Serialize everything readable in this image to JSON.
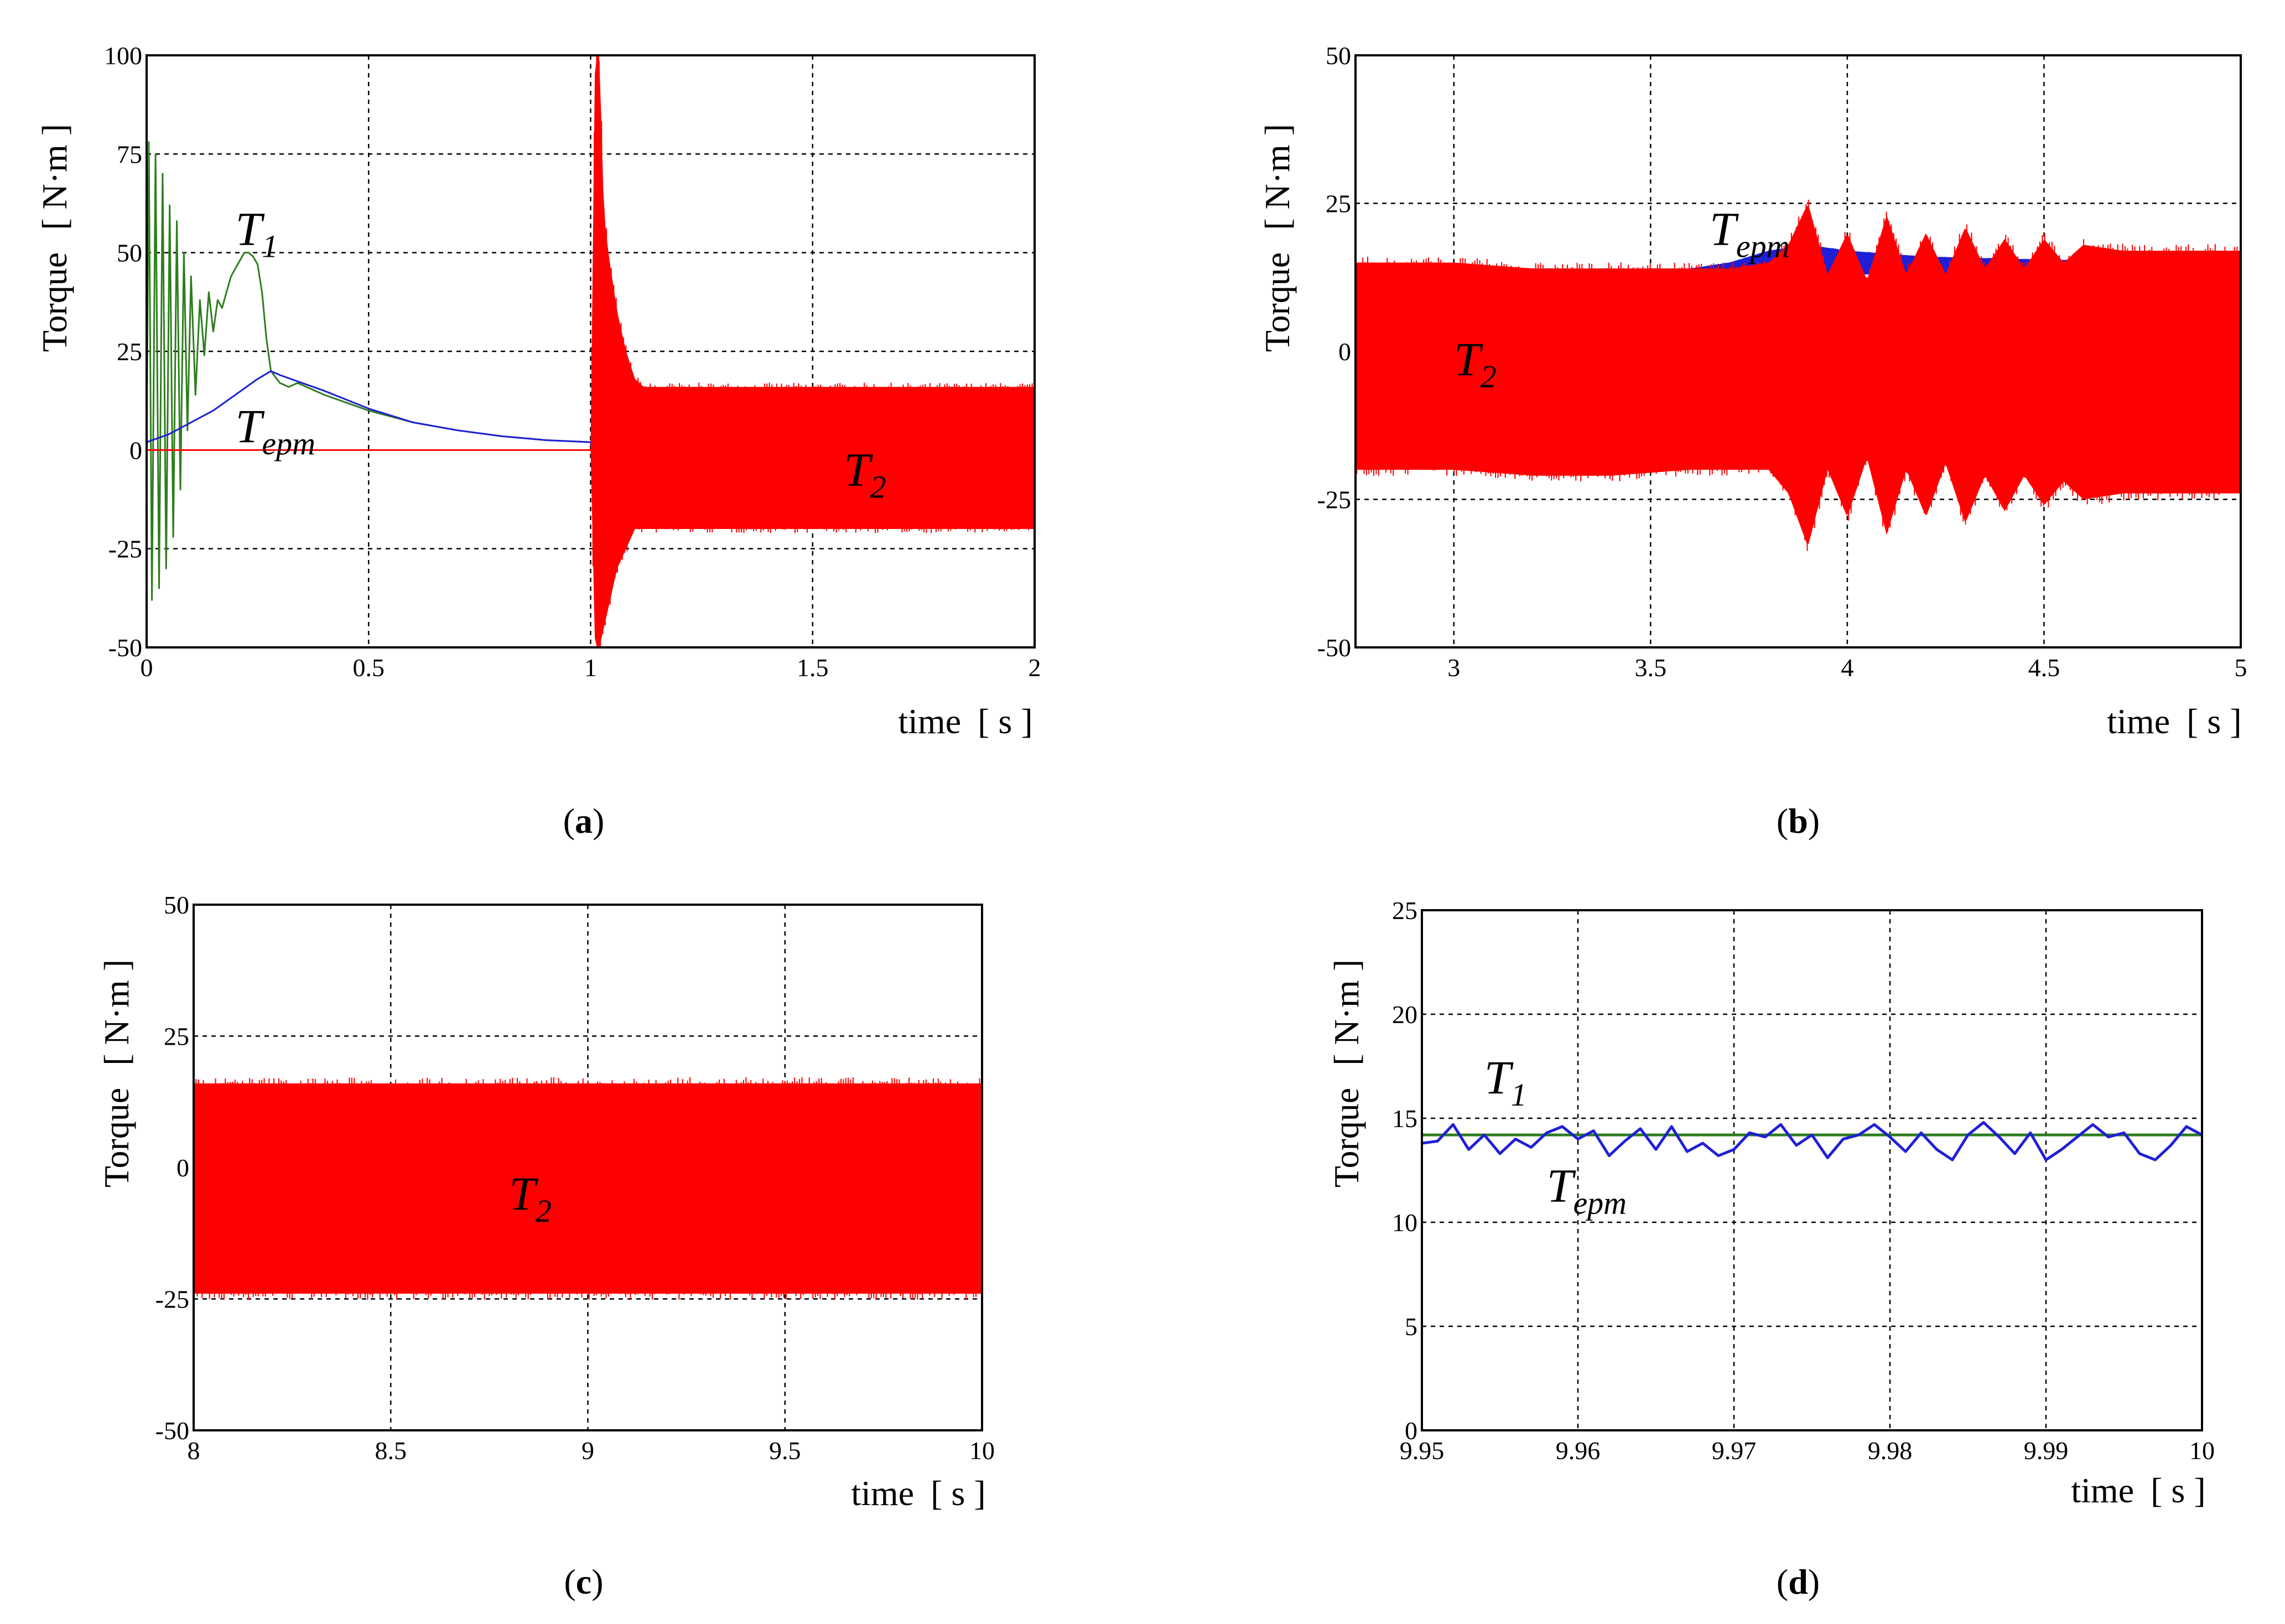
{
  "chart_data": [
    {
      "id": "a",
      "type": "line",
      "sublabel": {
        "open": "(",
        "letter": "a",
        "close": ")"
      },
      "ylabel": {
        "name": "Torque",
        "unit": "[ N·m ]"
      },
      "xlabel": {
        "name": "time",
        "unit": "[ s ]"
      },
      "xlim": [
        0,
        2
      ],
      "ylim": [
        -50,
        100
      ],
      "xticks": [
        0,
        0.5,
        1,
        1.5,
        2
      ],
      "xtick_labels": [
        "0",
        "0.5",
        "1",
        "1.5",
        "2"
      ],
      "yticks": [
        -50,
        -25,
        0,
        25,
        50,
        75,
        100
      ],
      "ytick_labels": [
        "-50",
        "-25",
        "0",
        "25",
        "50",
        "75",
        "100"
      ],
      "grid": true,
      "annotations": [
        {
          "main": "T",
          "sub": "1",
          "x": 0.2,
          "y": 52
        },
        {
          "main": "T",
          "sub": "epm",
          "x": 0.2,
          "y": 2
        },
        {
          "main": "T",
          "sub": "2",
          "x": 1.57,
          "y": -9
        }
      ],
      "series": [
        {
          "name": "T1",
          "color": "#2e7d1e",
          "kind": "line",
          "x": [
            0,
            0.005,
            0.012,
            0.02,
            0.028,
            0.036,
            0.044,
            0.052,
            0.06,
            0.068,
            0.076,
            0.084,
            0.092,
            0.1,
            0.11,
            0.12,
            0.13,
            0.14,
            0.15,
            0.16,
            0.17,
            0.18,
            0.19,
            0.2,
            0.21,
            0.22,
            0.23,
            0.24,
            0.25,
            0.26,
            0.27,
            0.28,
            0.3,
            0.32,
            0.34,
            0.36,
            0.4,
            0.5,
            0.6,
            0.7,
            0.8,
            0.9,
            1.0,
            1.02,
            1.04,
            1.05
          ],
          "y": [
            0,
            78,
            -38,
            75,
            -35,
            70,
            -30,
            62,
            -22,
            58,
            -10,
            50,
            5,
            44,
            14,
            38,
            24,
            40,
            30,
            38,
            36,
            40,
            44,
            46,
            48,
            50,
            50,
            49,
            47,
            40,
            28,
            20,
            17,
            16,
            17,
            16,
            14,
            10,
            7,
            5,
            3.5,
            2.5,
            2,
            2,
            2,
            2
          ]
        },
        {
          "name": "Tepm",
          "color": "#1f1fd6",
          "kind": "line",
          "x": [
            0,
            0.05,
            0.1,
            0.15,
            0.2,
            0.25,
            0.28,
            0.3,
            0.35,
            0.4,
            0.5,
            0.6,
            0.7,
            0.8,
            0.9,
            1.0,
            1.01,
            1.02,
            1.03,
            1.05
          ],
          "y": [
            2,
            4,
            7,
            10,
            14,
            18,
            20,
            19,
            17,
            15,
            10.5,
            7,
            5,
            3.5,
            2.5,
            2,
            -5,
            2,
            -4,
            2
          ]
        },
        {
          "name": "T2",
          "color": "#ff0000",
          "kind": "band",
          "x": [
            0,
            1.0,
            1.01,
            1.02,
            1.03,
            1.04,
            1.06,
            1.08,
            1.1,
            1.12,
            2.0
          ],
          "upper": [
            0,
            0,
            100,
            100,
            60,
            50,
            35,
            25,
            18,
            16,
            16
          ],
          "lower": [
            0,
            0,
            -50,
            -50,
            -45,
            -40,
            -30,
            -25,
            -20,
            -20,
            -20
          ]
        }
      ]
    },
    {
      "id": "b",
      "type": "line",
      "sublabel": {
        "open": "(",
        "letter": "b",
        "close": ")"
      },
      "ylabel": {
        "name": "Torque",
        "unit": "[ N·m ]"
      },
      "xlabel": {
        "name": "time",
        "unit": "[ s ]"
      },
      "xlim": [
        2.75,
        5
      ],
      "ylim": [
        -50,
        50
      ],
      "xticks": [
        3,
        3.5,
        4,
        4.5,
        5
      ],
      "xtick_labels": [
        "3",
        "3.5",
        "4",
        "4.5",
        "5"
      ],
      "yticks": [
        -50,
        -25,
        0,
        25,
        50
      ],
      "ytick_labels": [
        "-50",
        "-25",
        "0",
        "25",
        "50"
      ],
      "grid": true,
      "annotations": [
        {
          "main": "T",
          "sub": "epm",
          "x": 3.65,
          "y": 18
        },
        {
          "main": "T",
          "sub": "2",
          "x": 3.0,
          "y": -4
        }
      ],
      "series": [
        {
          "name": "Tepm",
          "color": "#1f1fd6",
          "kind": "band",
          "x": [
            2.75,
            3.6,
            3.7,
            3.8,
            3.9,
            4.0,
            4.2,
            4.5,
            5.0
          ],
          "upper": [
            14,
            14,
            15,
            17,
            18,
            17,
            16,
            15.5,
            15
          ],
          "lower": [
            12,
            12,
            13,
            13,
            13,
            13,
            13,
            13,
            13
          ]
        },
        {
          "name": "T2",
          "color": "#ff0000",
          "kind": "band",
          "x": [
            2.75,
            3.0,
            3.2,
            3.4,
            3.6,
            3.7,
            3.8,
            3.85,
            3.9,
            3.95,
            4.0,
            4.05,
            4.1,
            4.15,
            4.2,
            4.25,
            4.3,
            4.35,
            4.4,
            4.45,
            4.5,
            4.55,
            4.6,
            4.7,
            4.8,
            4.9,
            5.0
          ],
          "upper": [
            15,
            15,
            14,
            14,
            14,
            14,
            15,
            18,
            25,
            13,
            20,
            12,
            23,
            13,
            20,
            13,
            21,
            14,
            19,
            14,
            19,
            15,
            18,
            17,
            17,
            17,
            17
          ],
          "lower": [
            -20,
            -20,
            -21,
            -21,
            -20,
            -20,
            -20,
            -24,
            -33,
            -20,
            -28,
            -18,
            -31,
            -20,
            -28,
            -19,
            -29,
            -21,
            -27,
            -21,
            -26,
            -22,
            -25,
            -24,
            -24,
            -24,
            -24
          ]
        }
      ]
    },
    {
      "id": "c",
      "type": "line",
      "sublabel": {
        "open": "(",
        "letter": "c",
        "close": ")"
      },
      "ylabel": {
        "name": "Torque",
        "unit": "[ N·m ]"
      },
      "xlabel": {
        "name": "time",
        "unit": "[ s ]"
      },
      "xlim": [
        8,
        10
      ],
      "ylim": [
        -50,
        50
      ],
      "xticks": [
        8,
        8.5,
        9,
        9.5,
        10
      ],
      "xtick_labels": [
        "8",
        "8.5",
        "9",
        "9.5",
        "10"
      ],
      "yticks": [
        -50,
        -25,
        0,
        25,
        50
      ],
      "ytick_labels": [
        "-50",
        "-25",
        "0",
        "25",
        "50"
      ],
      "grid": true,
      "annotations": [
        {
          "main": "T",
          "sub": "2",
          "x": 8.8,
          "y": -8
        }
      ],
      "series": [
        {
          "name": "T2",
          "color": "#ff0000",
          "kind": "band",
          "x": [
            8,
            10
          ],
          "upper": [
            16,
            16
          ],
          "lower": [
            -24,
            -24
          ]
        }
      ]
    },
    {
      "id": "d",
      "type": "line",
      "sublabel": {
        "open": "(",
        "letter": "d",
        "close": ")"
      },
      "ylabel": {
        "name": "Torque",
        "unit": "[ N·m ]"
      },
      "xlabel": {
        "name": "time",
        "unit": "[ s ]"
      },
      "xlim": [
        9.95,
        10
      ],
      "ylim": [
        0,
        25
      ],
      "xticks": [
        9.95,
        9.96,
        9.97,
        9.98,
        9.99,
        10
      ],
      "xtick_labels": [
        "9.95",
        "9.96",
        "9.97",
        "9.98",
        "9.99",
        "10"
      ],
      "yticks": [
        0,
        5,
        10,
        15,
        20,
        25
      ],
      "ytick_labels": [
        "0",
        "5",
        "10",
        "15",
        "20",
        "25"
      ],
      "grid": true,
      "annotations": [
        {
          "main": "T",
          "sub": "1",
          "x": 9.954,
          "y": 16.2
        },
        {
          "main": "T",
          "sub": "epm",
          "x": 9.958,
          "y": 11.0
        }
      ],
      "series": [
        {
          "name": "T1",
          "color": "#2e7d1e",
          "kind": "line",
          "x": [
            9.95,
            10.0
          ],
          "y": [
            14.2,
            14.2
          ]
        },
        {
          "name": "Tepm",
          "color": "#1f1fd6",
          "kind": "line",
          "x": [
            9.95,
            9.951,
            9.952,
            9.953,
            9.954,
            9.955,
            9.956,
            9.957,
            9.958,
            9.959,
            9.96,
            9.961,
            9.962,
            9.963,
            9.964,
            9.965,
            9.966,
            9.967,
            9.968,
            9.969,
            9.97,
            9.971,
            9.972,
            9.973,
            9.974,
            9.975,
            9.976,
            9.977,
            9.978,
            9.979,
            9.98,
            9.981,
            9.982,
            9.983,
            9.984,
            9.985,
            9.986,
            9.987,
            9.988,
            9.989,
            9.99,
            9.991,
            9.992,
            9.993,
            9.994,
            9.995,
            9.996,
            9.997,
            9.998,
            9.999,
            10.0
          ],
          "y": [
            13.8,
            13.9,
            14.7,
            13.5,
            14.2,
            13.3,
            14.0,
            13.6,
            14.3,
            14.6,
            14.0,
            14.4,
            13.2,
            13.9,
            14.5,
            13.5,
            14.6,
            13.4,
            13.8,
            13.2,
            13.5,
            14.3,
            14.1,
            14.7,
            13.7,
            14.2,
            13.1,
            14.0,
            14.2,
            14.7,
            14.1,
            13.4,
            14.3,
            13.5,
            13.0,
            14.2,
            14.8,
            14.1,
            13.3,
            14.3,
            13.0,
            13.5,
            14.1,
            14.7,
            14.1,
            14.3,
            13.3,
            13.0,
            13.7,
            14.6,
            14.2
          ]
        }
      ]
    }
  ]
}
